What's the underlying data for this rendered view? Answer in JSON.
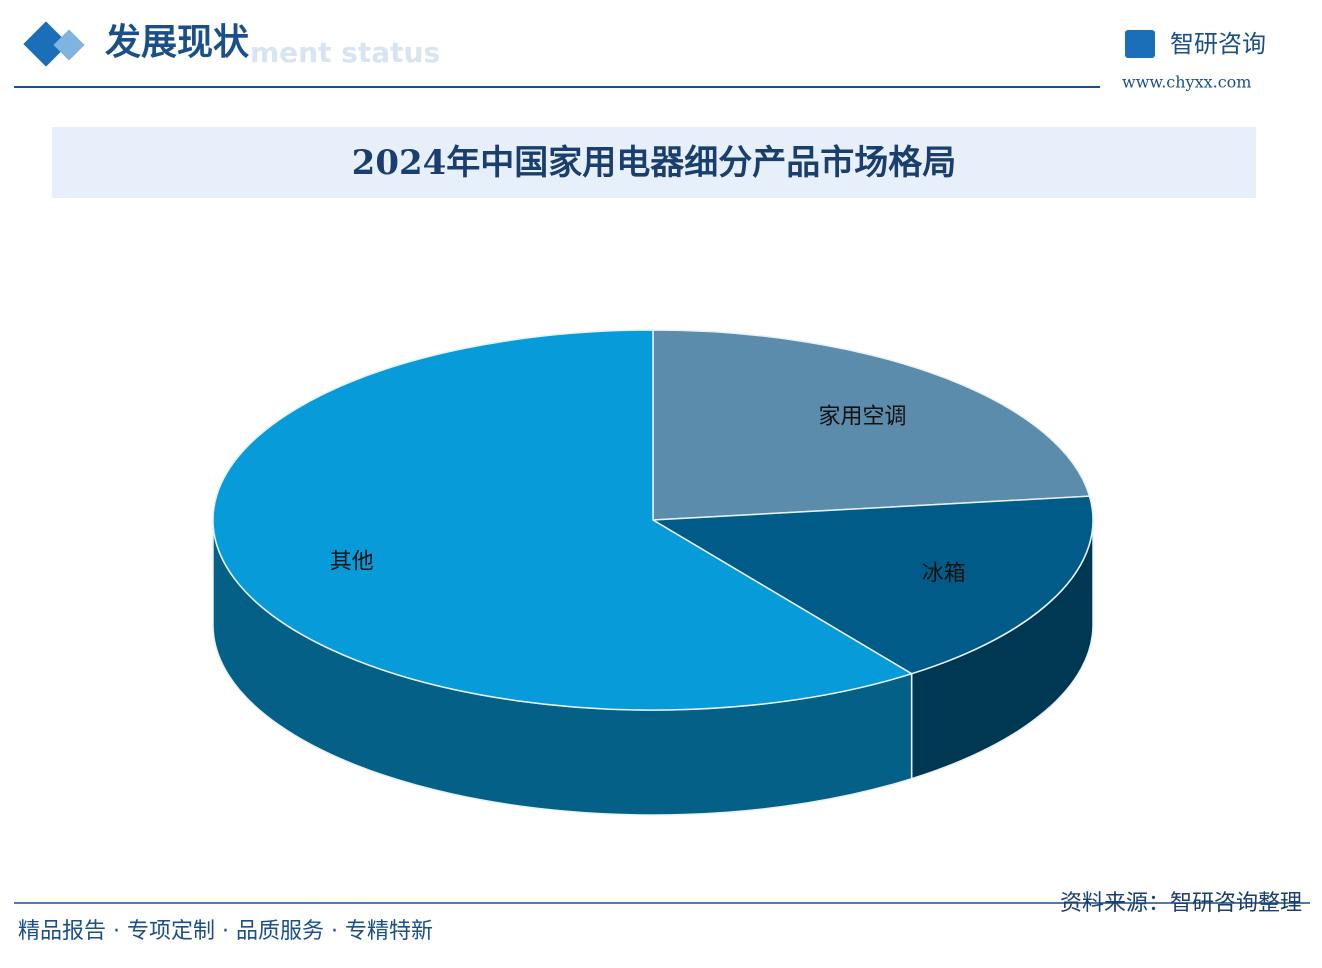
{
  "header": {
    "title": "发展现状",
    "subtitle": "ment status",
    "logo": "智研咨询",
    "site": "www.chyxx.com"
  },
  "chart_data": {
    "type": "pie3d",
    "title": "2024年中国家用电器细分产品市场格局",
    "categories": [
      "家用空调",
      "冰箱",
      "其他"
    ],
    "values": [
      23,
      17,
      60
    ],
    "colors": [
      "#5b8cab",
      "#005b88",
      "#089bd9"
    ]
  },
  "footer": {
    "slogan": "精品报告 · 专项定制 · 品质服务 · 专精特新",
    "source": "资料来源：智研咨询整理"
  }
}
